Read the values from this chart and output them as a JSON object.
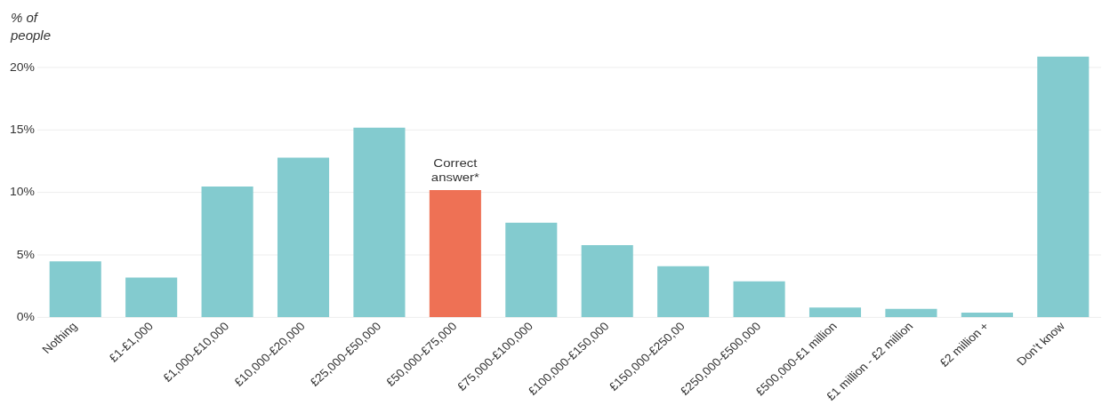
{
  "chart_data": {
    "type": "bar",
    "ylabel": "% of people",
    "categories": [
      "Nothing",
      "£1-£1,000",
      "£1,000-£10,000",
      "£10,000-£20,000",
      "£25,000-£50,000",
      "£50,000-£75,000",
      "£75,000-£100,000",
      "£100,000-£150,000",
      "£150,000-£250,00",
      "£250,000-£500,000",
      "£500,000-£1 million",
      "£1 million - £2 million",
      "£2 million +",
      "Don’t know"
    ],
    "values": [
      4.5,
      3.2,
      10.5,
      12.8,
      15.2,
      10.2,
      7.6,
      5.8,
      4.1,
      2.9,
      0.8,
      0.7,
      0.4,
      20.9
    ],
    "colors": [
      "#83cbcf",
      "#83cbcf",
      "#83cbcf",
      "#83cbcf",
      "#83cbcf",
      "#ee7155",
      "#83cbcf",
      "#83cbcf",
      "#83cbcf",
      "#83cbcf",
      "#83cbcf",
      "#83cbcf",
      "#83cbcf",
      "#83cbcf"
    ],
    "ylim": [
      0,
      21
    ],
    "yticks": [
      {
        "value": 0,
        "label": "0%"
      },
      {
        "value": 5,
        "label": "5%"
      },
      {
        "value": 10,
        "label": "10%"
      },
      {
        "value": 15,
        "label": "15%"
      },
      {
        "value": 20,
        "label": "20%"
      }
    ],
    "grid": "y",
    "annotations": [
      {
        "text": "Correct answer*",
        "x": "£50,000-£75,000",
        "y": 10.2
      }
    ]
  }
}
